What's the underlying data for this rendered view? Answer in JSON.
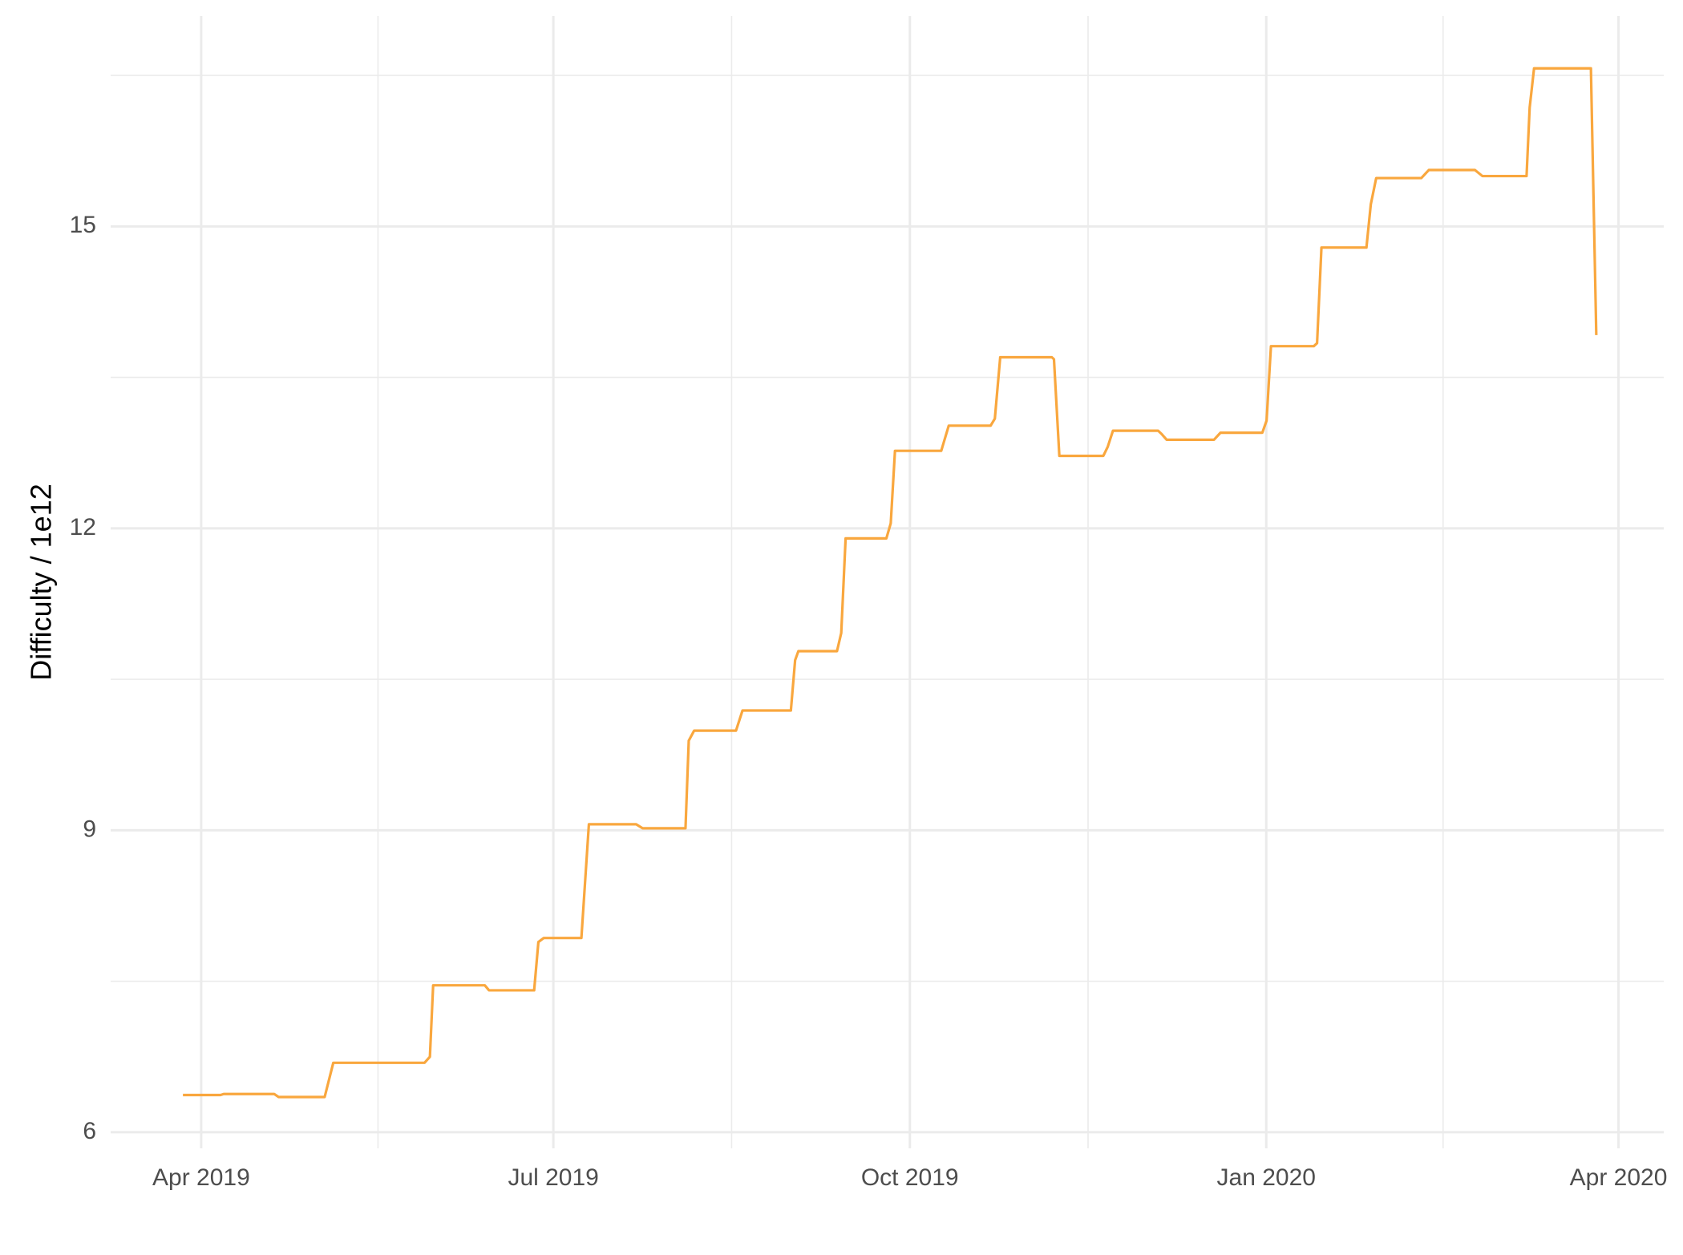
{
  "chart_data": {
    "type": "line",
    "ylabel": "Difficulty / 1e12",
    "xlim": [
      2019.183,
      2020.281
    ],
    "ylim": [
      5.84,
      17.09
    ],
    "xticks": [
      {
        "value": 2019.247,
        "label": "Apr 2019"
      },
      {
        "value": 2019.496,
        "label": "Jul 2019"
      },
      {
        "value": 2019.748,
        "label": "Oct 2019"
      },
      {
        "value": 2020.0,
        "label": "Jan 2020"
      },
      {
        "value": 2020.249,
        "label": "Apr 2020"
      }
    ],
    "xminor": [
      2019.372,
      2019.622,
      2019.874,
      2020.125
    ],
    "yticks": [
      6,
      9,
      12,
      15
    ],
    "yminor": [
      7.5,
      10.5,
      13.5,
      16.5
    ],
    "grid": true,
    "series": [
      {
        "color": "#f9a73e",
        "x": [
          2019.2341,
          2019.2607,
          2019.2629,
          2019.2986,
          2019.3017,
          2019.3343,
          2019.3404,
          2019.4049,
          2019.4087,
          2019.411,
          2019.4475,
          2019.4505,
          2019.4824,
          2019.4854,
          2019.4892,
          2019.5158,
          2019.5211,
          2019.5545,
          2019.5591,
          2019.5894,
          2019.5917,
          2019.5955,
          2019.6251,
          2019.6297,
          2019.6639,
          2019.6669,
          2019.6692,
          2019.6965,
          2019.6995,
          2019.7026,
          2019.7314,
          2019.7345,
          2019.7375,
          2019.7702,
          2019.7755,
          2019.8051,
          2019.8081,
          2019.8119,
          2019.8484,
          2019.8499,
          2019.8537,
          2019.8848,
          2019.8879,
          2019.8916,
          2019.9235,
          2019.9258,
          2019.9296,
          2019.963,
          2019.9676,
          2019.9972,
          2020.0002,
          2020.0033,
          2020.0336,
          2020.0359,
          2020.039,
          2020.0708,
          2020.0739,
          2020.0777,
          2020.1096,
          2020.1149,
          2020.1475,
          2020.1528,
          2020.184,
          2020.1862,
          2020.1893,
          2020.2295,
          2020.2333
        ],
        "values": [
          6.37,
          6.37,
          6.38,
          6.38,
          6.35,
          6.35,
          6.69,
          6.69,
          6.75,
          7.46,
          7.46,
          7.41,
          7.41,
          7.89,
          7.93,
          7.93,
          9.06,
          9.06,
          9.02,
          9.02,
          9.89,
          9.99,
          9.99,
          10.19,
          10.19,
          10.69,
          10.78,
          10.78,
          10.96,
          11.9,
          11.9,
          12.05,
          12.77,
          12.77,
          13.02,
          13.02,
          13.09,
          13.7,
          13.7,
          13.68,
          12.72,
          12.72,
          12.81,
          12.97,
          12.97,
          12.94,
          12.88,
          12.88,
          12.95,
          12.95,
          13.07,
          13.81,
          13.81,
          13.84,
          14.79,
          14.79,
          15.22,
          15.48,
          15.48,
          15.56,
          15.56,
          15.5,
          15.5,
          16.18,
          16.57,
          16.57,
          13.92
        ]
      }
    ]
  }
}
